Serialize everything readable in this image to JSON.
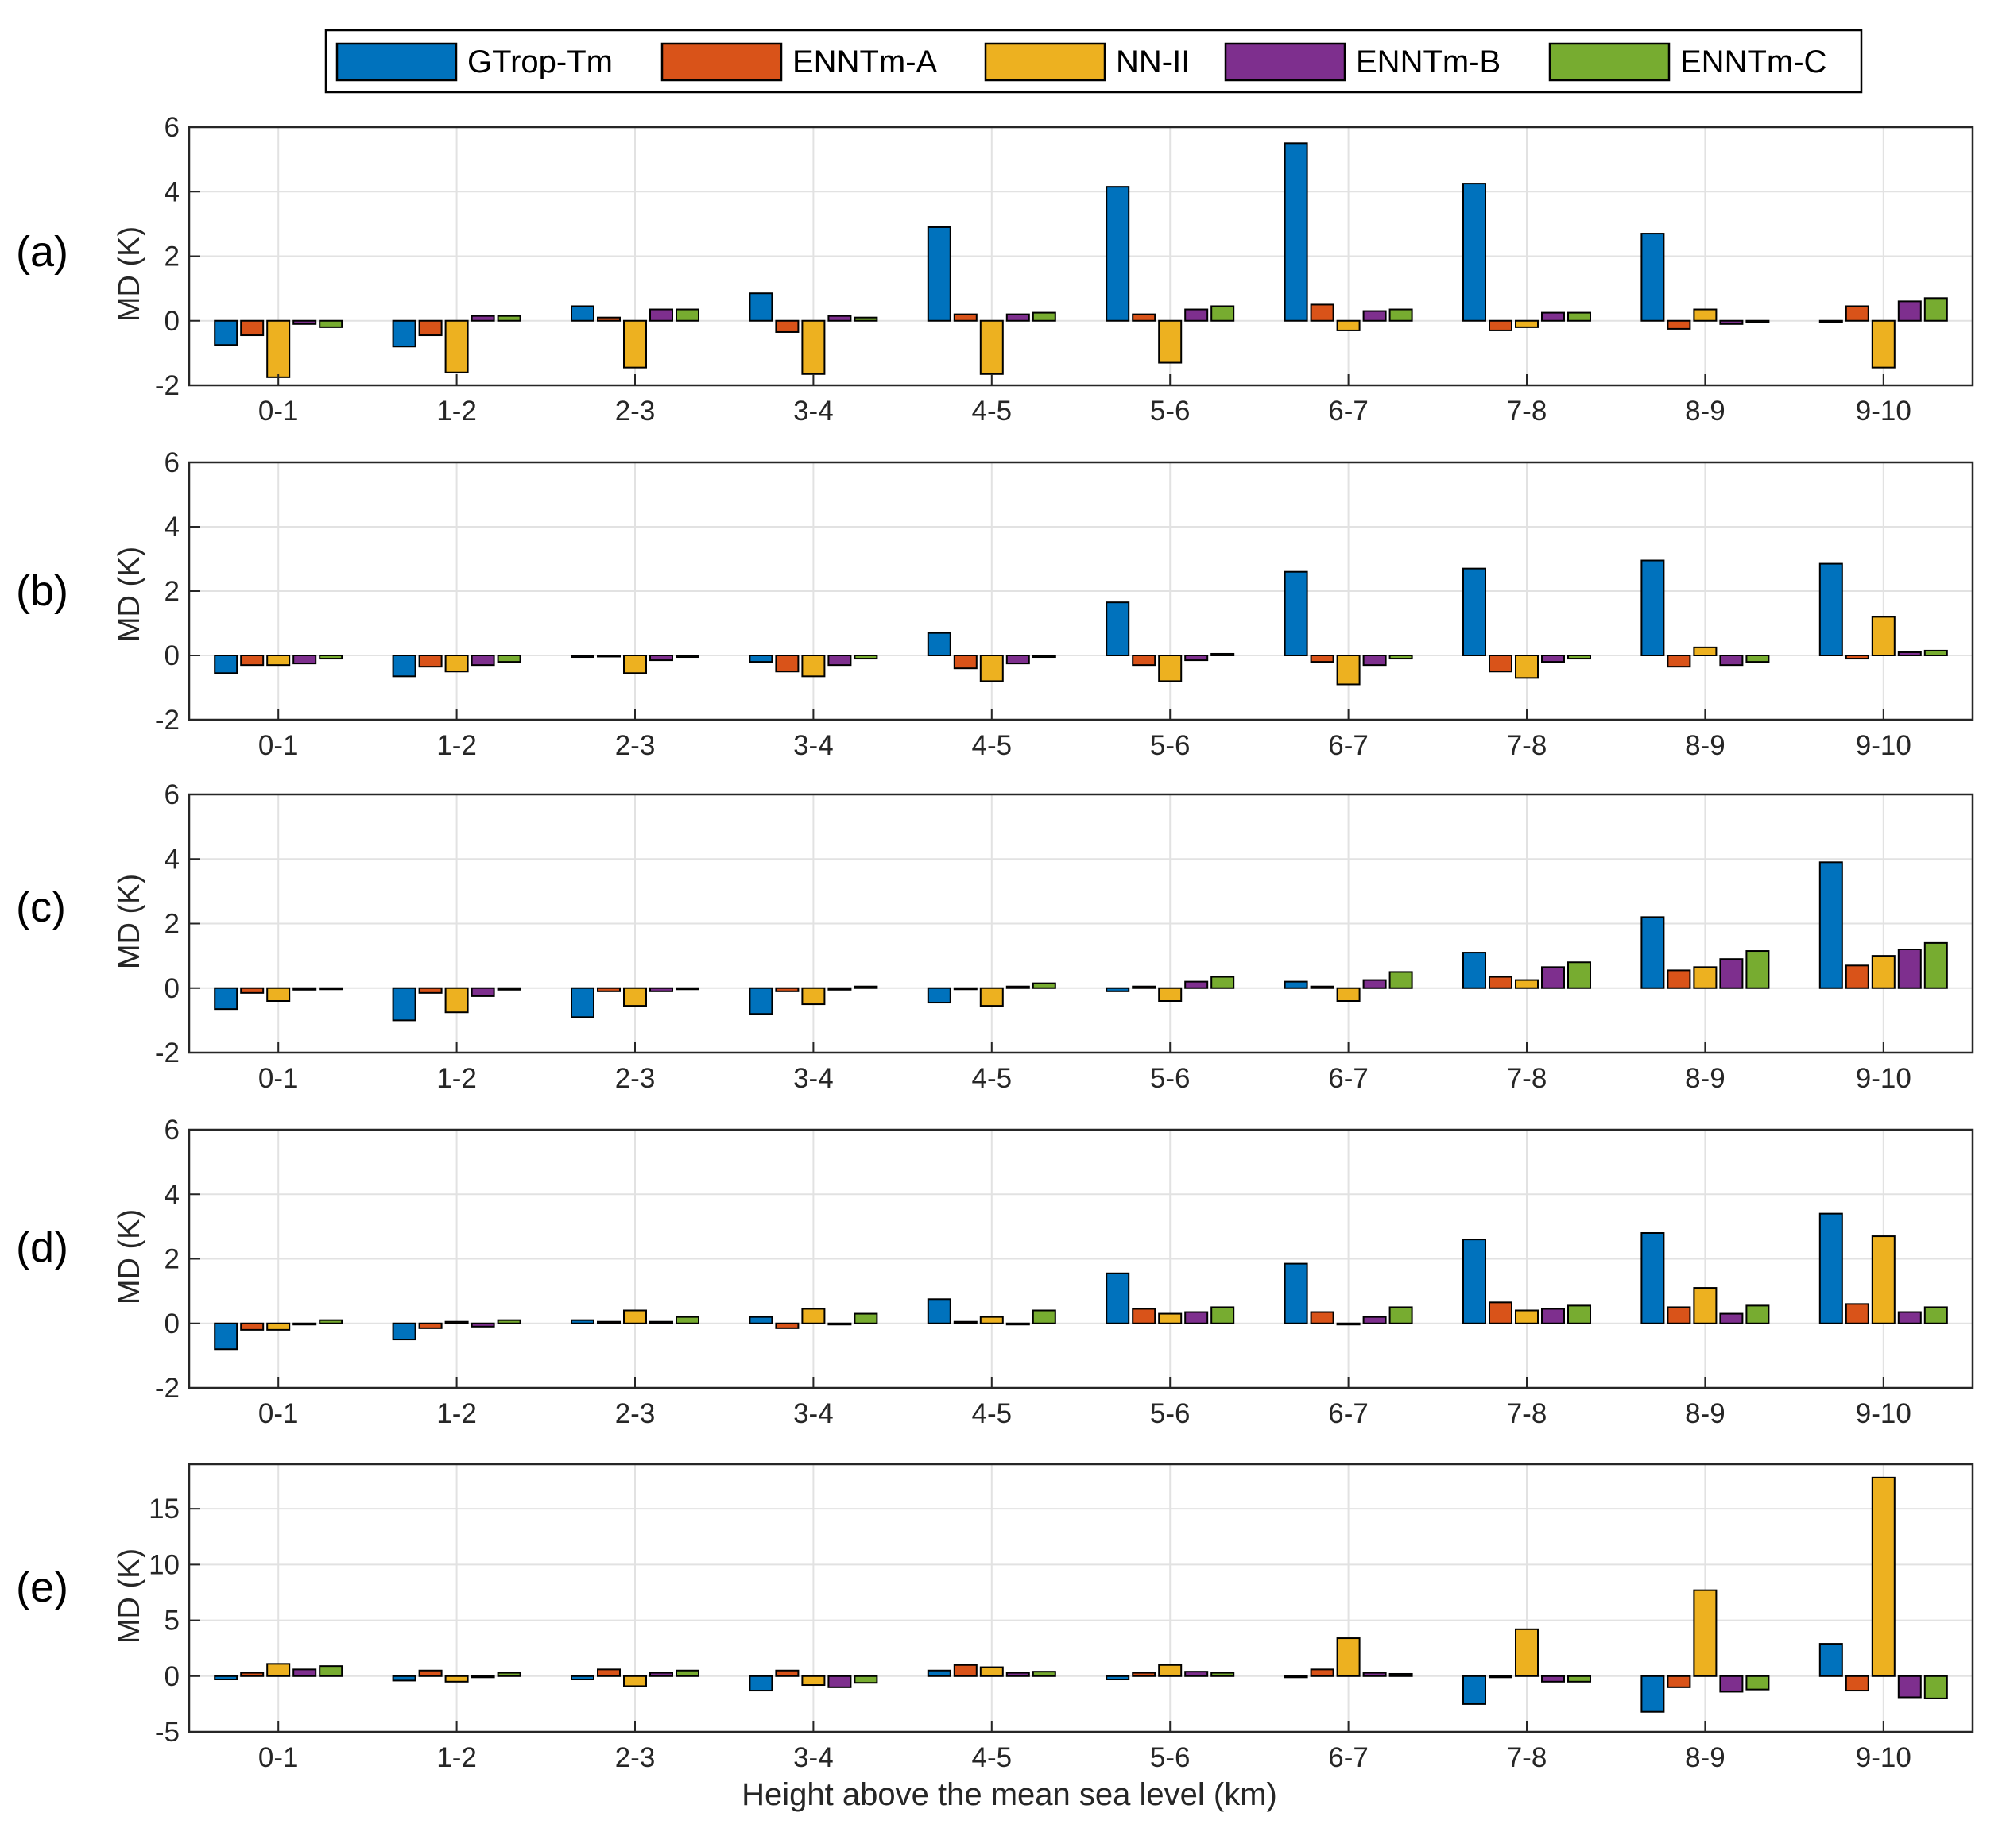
{
  "chart_data": {
    "type": "bar",
    "xlabel": "Height above the mean sea level (km)",
    "ylabel": "MD (K)",
    "categories": [
      "0-1",
      "1-2",
      "2-3",
      "3-4",
      "4-5",
      "5-6",
      "6-7",
      "7-8",
      "8-9",
      "9-10"
    ],
    "legend": [
      {
        "name": "GTrop-Tm",
        "color": "#0072BD"
      },
      {
        "name": "ENNTm-A",
        "color": "#D95319"
      },
      {
        "name": "NN-II",
        "color": "#EDB120"
      },
      {
        "name": "ENNTm-B",
        "color": "#7E2F8E"
      },
      {
        "name": "ENNTm-C",
        "color": "#77AC30"
      }
    ],
    "panels": [
      {
        "label": "(a)",
        "ylim": [
          -2,
          6
        ],
        "yticks": [
          -2,
          0,
          2,
          4,
          6
        ],
        "series": [
          {
            "name": "GTrop-Tm",
            "values": [
              -0.75,
              -0.8,
              0.45,
              0.85,
              2.9,
              4.15,
              5.5,
              4.25,
              2.7,
              0.0
            ]
          },
          {
            "name": "ENNTm-A",
            "values": [
              -0.45,
              -0.45,
              0.1,
              -0.35,
              0.2,
              0.2,
              0.5,
              -0.3,
              -0.25,
              0.45
            ]
          },
          {
            "name": "NN-II",
            "values": [
              -1.75,
              -1.6,
              -1.45,
              -1.65,
              -1.65,
              -1.3,
              -0.3,
              -0.2,
              0.35,
              -1.45
            ]
          },
          {
            "name": "ENNTm-B",
            "values": [
              -0.1,
              0.15,
              0.35,
              0.15,
              0.2,
              0.35,
              0.3,
              0.25,
              -0.1,
              0.6
            ]
          },
          {
            "name": "ENNTm-C",
            "values": [
              -0.2,
              0.15,
              0.35,
              0.1,
              0.25,
              0.45,
              0.35,
              0.25,
              -0.05,
              0.7
            ]
          }
        ]
      },
      {
        "label": "(b)",
        "ylim": [
          -2,
          6
        ],
        "yticks": [
          -2,
          0,
          2,
          4,
          6
        ],
        "series": [
          {
            "name": "GTrop-Tm",
            "values": [
              -0.55,
              -0.65,
              -0.05,
              -0.2,
              0.7,
              1.65,
              2.6,
              2.7,
              2.95,
              2.85
            ]
          },
          {
            "name": "ENNTm-A",
            "values": [
              -0.3,
              -0.35,
              0.0,
              -0.5,
              -0.4,
              -0.3,
              -0.2,
              -0.5,
              -0.35,
              -0.1
            ]
          },
          {
            "name": "NN-II",
            "values": [
              -0.3,
              -0.5,
              -0.55,
              -0.65,
              -0.8,
              -0.8,
              -0.9,
              -0.7,
              0.25,
              1.2
            ]
          },
          {
            "name": "ENNTm-B",
            "values": [
              -0.25,
              -0.3,
              -0.15,
              -0.3,
              -0.25,
              -0.15,
              -0.3,
              -0.2,
              -0.3,
              0.1
            ]
          },
          {
            "name": "ENNTm-C",
            "values": [
              -0.1,
              -0.2,
              -0.05,
              -0.1,
              -0.05,
              0.05,
              -0.1,
              -0.1,
              -0.2,
              0.15
            ]
          }
        ]
      },
      {
        "label": "(c)",
        "ylim": [
          -2,
          6
        ],
        "yticks": [
          -2,
          0,
          2,
          4,
          6
        ],
        "series": [
          {
            "name": "GTrop-Tm",
            "values": [
              -0.65,
              -1.0,
              -0.9,
              -0.8,
              -0.45,
              -0.1,
              0.2,
              1.1,
              2.2,
              3.9
            ]
          },
          {
            "name": "ENNTm-A",
            "values": [
              -0.15,
              -0.15,
              -0.1,
              -0.1,
              0.0,
              0.05,
              0.05,
              0.35,
              0.55,
              0.7
            ]
          },
          {
            "name": "NN-II",
            "values": [
              -0.4,
              -0.75,
              -0.55,
              -0.5,
              -0.55,
              -0.4,
              -0.4,
              0.25,
              0.65,
              1.0
            ]
          },
          {
            "name": "ENNTm-B",
            "values": [
              -0.05,
              -0.25,
              -0.1,
              -0.05,
              0.05,
              0.2,
              0.25,
              0.65,
              0.9,
              1.2
            ]
          },
          {
            "name": "ENNTm-C",
            "values": [
              0.0,
              -0.05,
              0.0,
              0.05,
              0.15,
              0.35,
              0.5,
              0.8,
              1.15,
              1.4
            ]
          }
        ]
      },
      {
        "label": "(d)",
        "ylim": [
          -2,
          6
        ],
        "yticks": [
          -2,
          0,
          2,
          4,
          6
        ],
        "series": [
          {
            "name": "GTrop-Tm",
            "values": [
              -0.8,
              -0.5,
              0.1,
              0.2,
              0.75,
              1.55,
              1.85,
              2.6,
              2.8,
              3.4
            ]
          },
          {
            "name": "ENNTm-A",
            "values": [
              -0.2,
              -0.15,
              0.05,
              -0.15,
              0.05,
              0.45,
              0.35,
              0.65,
              0.5,
              0.6
            ]
          },
          {
            "name": "NN-II",
            "values": [
              -0.2,
              0.05,
              0.4,
              0.45,
              0.2,
              0.3,
              0.0,
              0.4,
              1.1,
              2.7
            ]
          },
          {
            "name": "ENNTm-B",
            "values": [
              0.0,
              -0.1,
              0.05,
              0.0,
              0.0,
              0.35,
              0.2,
              0.45,
              0.3,
              0.35
            ]
          },
          {
            "name": "ENNTm-C",
            "values": [
              0.1,
              0.1,
              0.2,
              0.3,
              0.4,
              0.5,
              0.5,
              0.55,
              0.55,
              0.5
            ]
          }
        ]
      },
      {
        "label": "(e)",
        "ylim": [
          -5,
          19
        ],
        "yticks": [
          -5,
          0,
          5,
          10,
          15
        ],
        "series": [
          {
            "name": "GTrop-Tm",
            "values": [
              -0.3,
              -0.4,
              -0.3,
              -1.3,
              0.5,
              -0.3,
              -0.1,
              -2.5,
              -3.2,
              2.9
            ]
          },
          {
            "name": "ENNTm-A",
            "values": [
              0.3,
              0.5,
              0.6,
              0.5,
              1.0,
              0.3,
              0.6,
              0.0,
              -1.0,
              -1.3
            ]
          },
          {
            "name": "NN-II",
            "values": [
              1.1,
              -0.5,
              -0.9,
              -0.8,
              0.8,
              1.0,
              3.4,
              4.2,
              7.7,
              17.8
            ]
          },
          {
            "name": "ENNTm-B",
            "values": [
              0.6,
              0.0,
              0.3,
              -1.0,
              0.3,
              0.4,
              0.3,
              -0.5,
              -1.4,
              -1.9
            ]
          },
          {
            "name": "ENNTm-C",
            "values": [
              0.9,
              0.3,
              0.5,
              -0.6,
              0.4,
              0.3,
              0.2,
              -0.5,
              -1.2,
              -2.0
            ]
          }
        ]
      }
    ]
  }
}
